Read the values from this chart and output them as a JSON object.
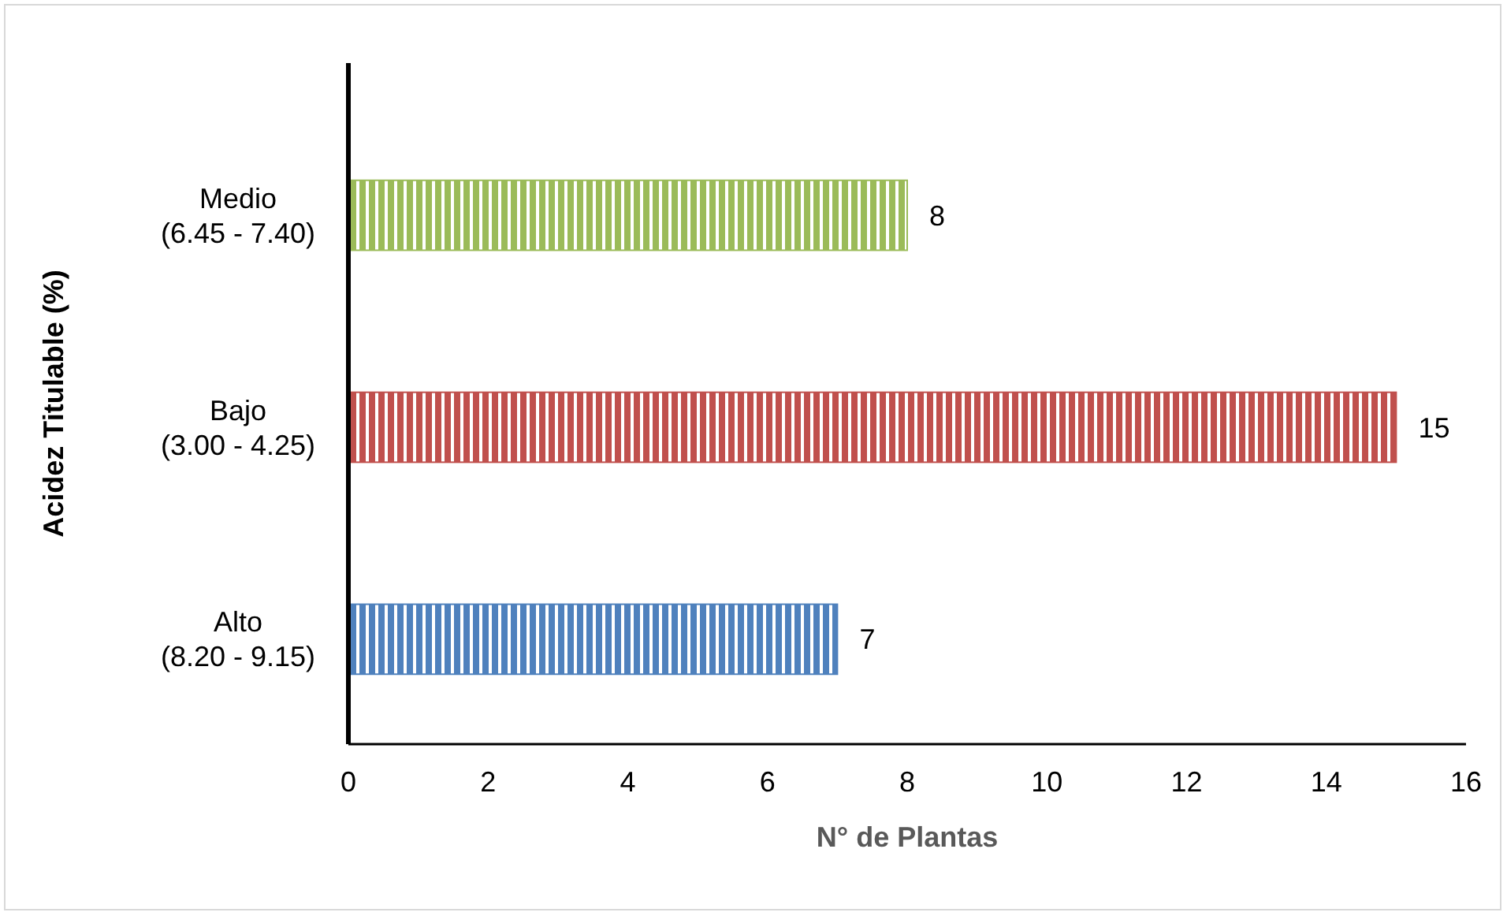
{
  "chart_data": {
    "type": "bar",
    "orientation": "horizontal",
    "categories": [
      "Medio\n(6.45 - 7.40)",
      "Bajo\n(3.00 - 4.25)",
      "Alto\n(8.20 - 9.15)"
    ],
    "values": [
      8,
      15,
      7
    ],
    "colors": [
      "#9bbb59",
      "#c0504d",
      "#4f81bd"
    ],
    "xlim": [
      0,
      16
    ],
    "xticks": [
      0,
      2,
      4,
      6,
      8,
      10,
      12,
      14,
      16
    ],
    "xlabel": "N° de Plantas",
    "ylabel": "Acidez Titulable (%)",
    "data_labels": true,
    "grid": false
  }
}
